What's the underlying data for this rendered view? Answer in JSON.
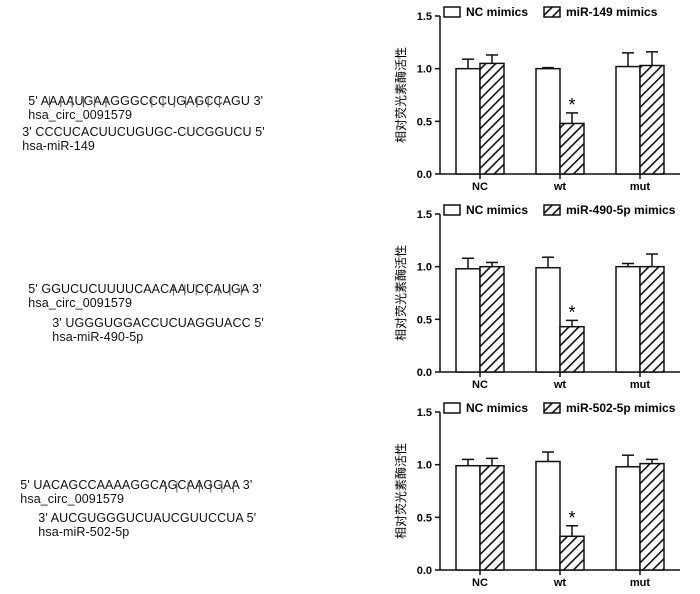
{
  "sequences": [
    {
      "top_seq": "5' AAAAUGAAGGGCCCUGAGCCAGU 3'",
      "top_name": "hsa_circ_0091579",
      "pairing": "|  |  |  |  |  |           |  |  |  |  |  |  |",
      "bottom_seq": "3' CCCUCACUUCUGUGC-CUCGGUCU 5'",
      "bottom_name": "hsa-miR-149"
    },
    {
      "top_seq": "5' GGUCUCUUUUCAACAAUCCAUGA 3'",
      "top_name": "hsa_circ_0091579",
      "pairing": "|  |  |  |  |  |  |",
      "bottom_seq": "3' UGGGUGGACCUCUAGGUACC 5'",
      "bottom_name": "hsa-miR-490-5p"
    },
    {
      "top_seq": "5' UACAGCCAAAAGGCAGCAAGGAA 3'",
      "top_name": "hsa_circ_0091579",
      "pairing": "|  |  |  |  |  |  |",
      "bottom_seq": "3' AUCGUGGGUCUAUCGUUCCUA 5'",
      "bottom_name": "hsa-miR-502-5p"
    }
  ],
  "chart_data": [
    {
      "type": "bar",
      "categories": [
        "NC",
        "wt",
        "mut"
      ],
      "ylabel": "相对荧光素酶活性",
      "ylim": [
        0,
        1.5
      ],
      "yticks": [
        "0.0",
        "0.5",
        "1.0",
        "1.5"
      ],
      "series": [
        {
          "name": "NC mimics",
          "values": [
            1.0,
            1.0,
            1.02
          ],
          "errors": [
            0.09,
            0.01,
            0.13
          ],
          "fill": "open"
        },
        {
          "name": "miR-149 mimics",
          "values": [
            1.05,
            0.48,
            1.03
          ],
          "errors": [
            0.08,
            0.1,
            0.13
          ],
          "fill": "hatched"
        }
      ],
      "annotations": [
        {
          "category": "wt",
          "series": 1,
          "text": "*"
        }
      ]
    },
    {
      "type": "bar",
      "categories": [
        "NC",
        "wt",
        "mut"
      ],
      "ylabel": "相对荧光素酶活性",
      "ylim": [
        0,
        1.5
      ],
      "yticks": [
        "0.0",
        "0.5",
        "1.0",
        "1.5"
      ],
      "series": [
        {
          "name": "NC mimics",
          "values": [
            0.98,
            0.99,
            1.0
          ],
          "errors": [
            0.1,
            0.1,
            0.03
          ],
          "fill": "open"
        },
        {
          "name": "miR-490-5p mimics",
          "values": [
            1.0,
            0.43,
            1.0
          ],
          "errors": [
            0.04,
            0.06,
            0.12
          ],
          "fill": "hatched"
        }
      ],
      "annotations": [
        {
          "category": "wt",
          "series": 1,
          "text": "*"
        }
      ]
    },
    {
      "type": "bar",
      "categories": [
        "NC",
        "wt",
        "mut"
      ],
      "ylabel": "相对荧光素酶活性",
      "ylim": [
        0,
        1.5
      ],
      "yticks": [
        "0.0",
        "0.5",
        "1.0",
        "1.5"
      ],
      "series": [
        {
          "name": "NC mimics",
          "values": [
            0.99,
            1.03,
            0.98
          ],
          "errors": [
            0.06,
            0.09,
            0.11
          ],
          "fill": "open"
        },
        {
          "name": "miR-502-5p mimics",
          "values": [
            0.99,
            0.32,
            1.01
          ],
          "errors": [
            0.07,
            0.1,
            0.04
          ],
          "fill": "hatched"
        }
      ],
      "annotations": [
        {
          "category": "wt",
          "series": 1,
          "text": "*"
        }
      ]
    }
  ]
}
